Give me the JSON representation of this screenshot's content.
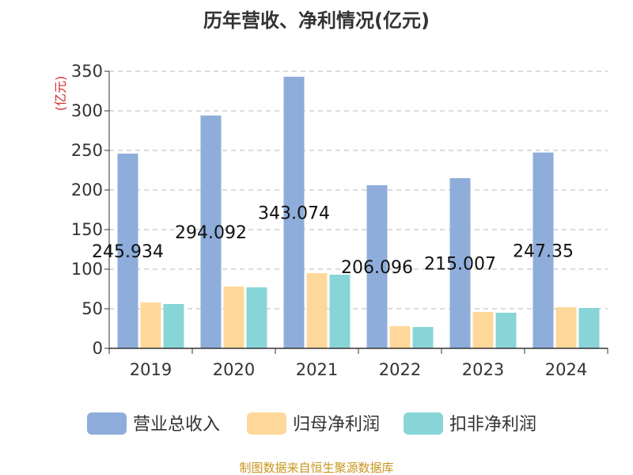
{
  "chart_data": {
    "type": "bar",
    "title": "历年营收、净利情况(亿元)",
    "ylabel": "(亿元)",
    "xlabel": "",
    "ylim": [
      0,
      350
    ],
    "yticks": [
      0,
      50,
      100,
      150,
      200,
      250,
      300,
      350
    ],
    "grid": true,
    "legend_position": "bottom",
    "categories": [
      "2019",
      "2020",
      "2021",
      "2022",
      "2023",
      "2024"
    ],
    "series": [
      {
        "name": "营业总收入",
        "color": "#8eaddb",
        "values": [
          245.934,
          294.092,
          343.074,
          206.096,
          215.007,
          247.35
        ],
        "labels": [
          "245.934",
          "294.092",
          "343.074",
          "206.096",
          "215.007",
          "247.35"
        ]
      },
      {
        "name": "归母净利润",
        "color": "#fed89a",
        "values": [
          58,
          78,
          95,
          28,
          46,
          52
        ]
      },
      {
        "name": "扣非净利润",
        "color": "#88d5d8",
        "values": [
          56,
          77,
          93,
          27,
          45,
          51
        ]
      }
    ]
  },
  "source": "制图数据来自恒生聚源数据库"
}
